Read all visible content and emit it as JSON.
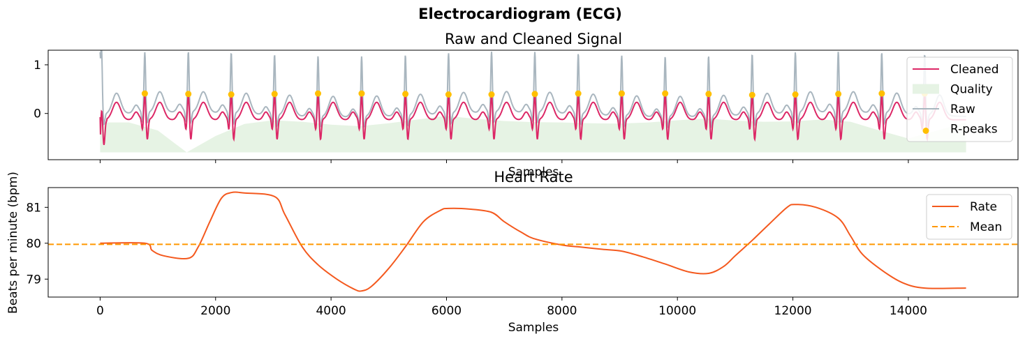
{
  "figure": {
    "suptitle": "Electrocardiogram (ECG)"
  },
  "colors": {
    "cleaned": "#dc2766",
    "raw": "#a9b6bf",
    "quality": "#e6f3e4",
    "rpeaks": "#ffbf00",
    "rate": "#f4591e",
    "mean": "#ff9800"
  },
  "chart_data": [
    {
      "type": "line",
      "title": "Raw and Cleaned Signal",
      "xlabel": "Samples",
      "ylabel": "",
      "xlim": [
        -900,
        15900
      ],
      "ylim": [
        -0.95,
        1.3
      ],
      "yticks": [
        0,
        1
      ],
      "legend": "upper-right",
      "series": [
        {
          "name": "Cleaned",
          "kind": "line",
          "desc": "filtered ECG, approx. 80 bpm, baseline ~ -0.1"
        },
        {
          "name": "Quality",
          "kind": "area",
          "values_x": [
            0,
            500,
            1000,
            1500,
            2000,
            2500,
            3000,
            3500,
            4000,
            4500,
            5000,
            5500,
            6000,
            6500,
            7000,
            7500,
            8000,
            8500,
            9000,
            9500,
            10000,
            10500,
            11000,
            11500,
            12000,
            12500,
            13000,
            13500,
            14000,
            14500,
            15000
          ],
          "values_y": [
            0.82,
            0.82,
            0.6,
            0.0,
            0.45,
            0.78,
            0.88,
            0.84,
            0.76,
            0.72,
            0.8,
            0.9,
            1.0,
            0.92,
            0.86,
            0.83,
            0.82,
            0.8,
            0.79,
            0.82,
            0.88,
            0.93,
            0.87,
            0.84,
            0.85,
            0.9,
            0.84,
            0.6,
            0.38,
            0.6,
            0.82
          ]
        },
        {
          "name": "Raw",
          "kind": "line",
          "desc": "raw ECG, peaks ~1.1"
        },
        {
          "name": "R-peaks",
          "kind": "scatter",
          "x": [
            774,
            1528,
            2271,
            3022,
            3775,
            4530,
            5288,
            6035,
            6780,
            7530,
            8282,
            9035,
            9788,
            10540,
            11295,
            12043,
            12787,
            13540,
            14283
          ],
          "y": [
            0.41,
            0.4,
            0.39,
            0.4,
            0.41,
            0.41,
            0.4,
            0.39,
            0.39,
            0.4,
            0.41,
            0.41,
            0.41,
            0.4,
            0.38,
            0.39,
            0.4,
            0.41,
            0.41
          ]
        }
      ]
    },
    {
      "type": "line",
      "title": "Heart Rate",
      "xlabel": "Samples",
      "ylabel": "Beats per minute (bpm)",
      "xlim": [
        -900,
        15900
      ],
      "ylim": [
        78.5,
        81.55
      ],
      "xticks": [
        0,
        2000,
        4000,
        6000,
        8000,
        10000,
        12000,
        14000
      ],
      "yticks": [
        79,
        80,
        81
      ],
      "legend": "upper-right",
      "series": [
        {
          "name": "Rate",
          "kind": "line",
          "x": [
            0,
            774,
            900,
            1100,
            1528,
            1700,
            1900,
            2100,
            2271,
            2500,
            3022,
            3200,
            3500,
            3775,
            4100,
            4400,
            4530,
            4700,
            5000,
            5288,
            5600,
            5900,
            6035,
            6400,
            6780,
            7000,
            7300,
            7530,
            8000,
            8282,
            8700,
            9035,
            9400,
            9788,
            10200,
            10540,
            10800,
            11000,
            11295,
            11600,
            11900,
            12043,
            12400,
            12787,
            13000,
            13200,
            13540,
            13900,
            14283,
            15000
          ],
          "y": [
            80.0,
            80.0,
            79.8,
            79.65,
            79.58,
            79.9,
            80.6,
            81.25,
            81.41,
            81.4,
            81.3,
            80.8,
            79.9,
            79.4,
            79.0,
            78.72,
            78.67,
            78.8,
            79.3,
            79.9,
            80.6,
            80.92,
            80.97,
            80.95,
            80.86,
            80.6,
            80.3,
            80.12,
            79.95,
            79.9,
            79.83,
            79.78,
            79.62,
            79.42,
            79.2,
            79.16,
            79.35,
            79.65,
            80.08,
            80.55,
            81.0,
            81.08,
            81.0,
            80.7,
            80.2,
            79.7,
            79.25,
            78.9,
            78.75,
            78.75
          ]
        },
        {
          "name": "Mean",
          "kind": "hline",
          "y": 79.97
        }
      ]
    }
  ]
}
